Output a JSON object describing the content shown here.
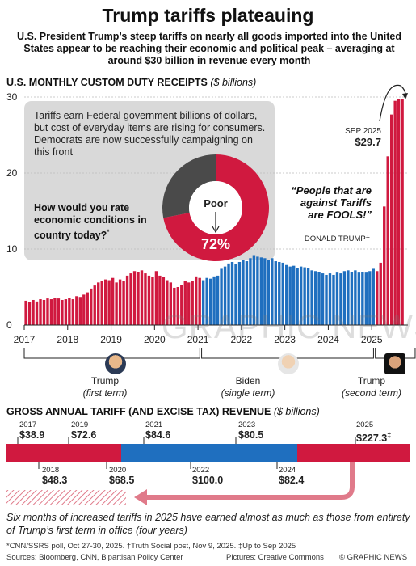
{
  "title": "Trump tariffs plateauing",
  "subtitle": "U.S. President Trump’s steep tariffs on nearly all goods imported into the United States appear to be reaching their economic and political peak – averaging at around $30 billion in revenue every month",
  "monthly_section": {
    "title": "U.S. MONTHLY CUSTOM DUTY RECEIPTS",
    "unit": "($ billions)"
  },
  "callout": {
    "text": "Tariffs earn Federal government billions of dollars, but cost of everyday items are rising for consumers. Democrats are now successfully campaigning on this front",
    "question": "How would you rate economic conditions in country today?",
    "question_mark": "*",
    "poll_label": "Poor",
    "poll_value": "72%"
  },
  "sep_annotation": {
    "label": "SEP 2025",
    "value": "$29.7"
  },
  "quote": {
    "text": "“People that are against Tariffs are FOOLS!”",
    "author": "DONALD TRUMP",
    "mark": "†"
  },
  "terms": [
    {
      "name": "Trump",
      "sub": "(first term)"
    },
    {
      "name": "Biden",
      "sub": "(single term)"
    },
    {
      "name": "Trump",
      "sub": "(second term)"
    }
  ],
  "annual_section": {
    "title": "GROSS ANNUAL TARIFF (AND EXCISE TAX) REVENUE",
    "unit": "($ billions)"
  },
  "annual_top": [
    {
      "year": "2017",
      "value": "$38.9"
    },
    {
      "year": "2019",
      "value": "$72.6"
    },
    {
      "year": "2021",
      "value": "$84.6"
    },
    {
      "year": "2023",
      "value": "$80.5"
    },
    {
      "year": "2025",
      "value": "$227.3",
      "mark": "‡"
    }
  ],
  "annual_bottom": [
    {
      "year": "2018",
      "value": "$48.3"
    },
    {
      "year": "2020",
      "value": "$68.5"
    },
    {
      "year": "2022",
      "value": "$100.0"
    },
    {
      "year": "2024",
      "value": "$82.4"
    }
  ],
  "note": "Six months of increased tariffs in 2025 have earned almost as much as those from entirety of Trump’s first term in office (four years)",
  "footnote": "*CNN/SSRS poll, Oct 27-30, 2025. †Truth Social post, Nov 9, 2025. ‡Up to Sep 2025",
  "sources": "Sources: Bloomberg, CNN, Bipartisan Policy Center",
  "pictures": "Pictures: Creative Commons",
  "copyright": "© GRAPHIC NEWS",
  "watermark": "GRAPHIC NEWS",
  "colors": {
    "red": "#d0193f",
    "blue": "#1f6fbf",
    "gray": "#d9d9d9",
    "dark": "#4a4a4a"
  },
  "chart_data": {
    "type": "bar",
    "title": "U.S. MONTHLY CUSTOM DUTY RECEIPTS",
    "ylabel": "($ billions)",
    "ylim": [
      0,
      30
    ],
    "y_ticks": [
      0,
      10,
      20,
      30
    ],
    "x_ticks": [
      "2017",
      "2018",
      "2019",
      "2020",
      "2021",
      "2022",
      "2023",
      "2024",
      "2025"
    ],
    "x_start": "2017-01",
    "values": [
      3.2,
      3.0,
      3.3,
      3.1,
      3.4,
      3.3,
      3.5,
      3.4,
      3.6,
      3.5,
      3.3,
      3.4,
      3.6,
      3.4,
      3.8,
      3.7,
      4.0,
      4.3,
      4.8,
      5.2,
      5.6,
      5.8,
      6.0,
      5.9,
      6.2,
      5.6,
      6.0,
      5.8,
      6.5,
      6.8,
      7.1,
      7.0,
      7.2,
      6.8,
      6.5,
      6.3,
      7.1,
      6.5,
      6.3,
      5.9,
      5.6,
      4.9,
      5.0,
      5.3,
      5.8,
      5.6,
      5.8,
      6.4,
      6.2,
      5.9,
      6.2,
      6.1,
      6.4,
      6.5,
      7.4,
      7.7,
      8.1,
      8.3,
      8.0,
      8.3,
      8.6,
      8.4,
      8.8,
      9.2,
      9.0,
      8.9,
      8.8,
      8.6,
      8.8,
      8.4,
      8.3,
      8.2,
      7.9,
      7.7,
      7.8,
      7.5,
      7.7,
      7.6,
      7.5,
      7.2,
      7.1,
      7.0,
      6.8,
      6.6,
      6.8,
      6.6,
      6.9,
      6.8,
      7.1,
      7.2,
      7.0,
      7.2,
      6.9,
      7.0,
      6.9,
      7.1,
      7.4,
      7.1,
      8.2,
      15.6,
      22.2,
      27.7,
      29.5,
      29.7,
      29.7
    ],
    "series_colors_by_term": [
      {
        "name": "Trump (first term)",
        "from": "2017-01",
        "to": "2021-01",
        "color": "#d0193f"
      },
      {
        "name": "Biden (single term)",
        "from": "2021-02",
        "to": "2025-01",
        "color": "#1f6fbf"
      },
      {
        "name": "Trump (second term)",
        "from": "2025-02",
        "to": "2025-09",
        "color": "#d0193f"
      }
    ],
    "grid": true,
    "annual_revenue": {
      "categories": [
        "2017",
        "2018",
        "2019",
        "2020",
        "2021",
        "2022",
        "2023",
        "2024",
        "2025"
      ],
      "values": [
        38.9,
        48.3,
        72.6,
        68.5,
        84.6,
        100.0,
        80.5,
        82.4,
        227.3
      ]
    }
  }
}
